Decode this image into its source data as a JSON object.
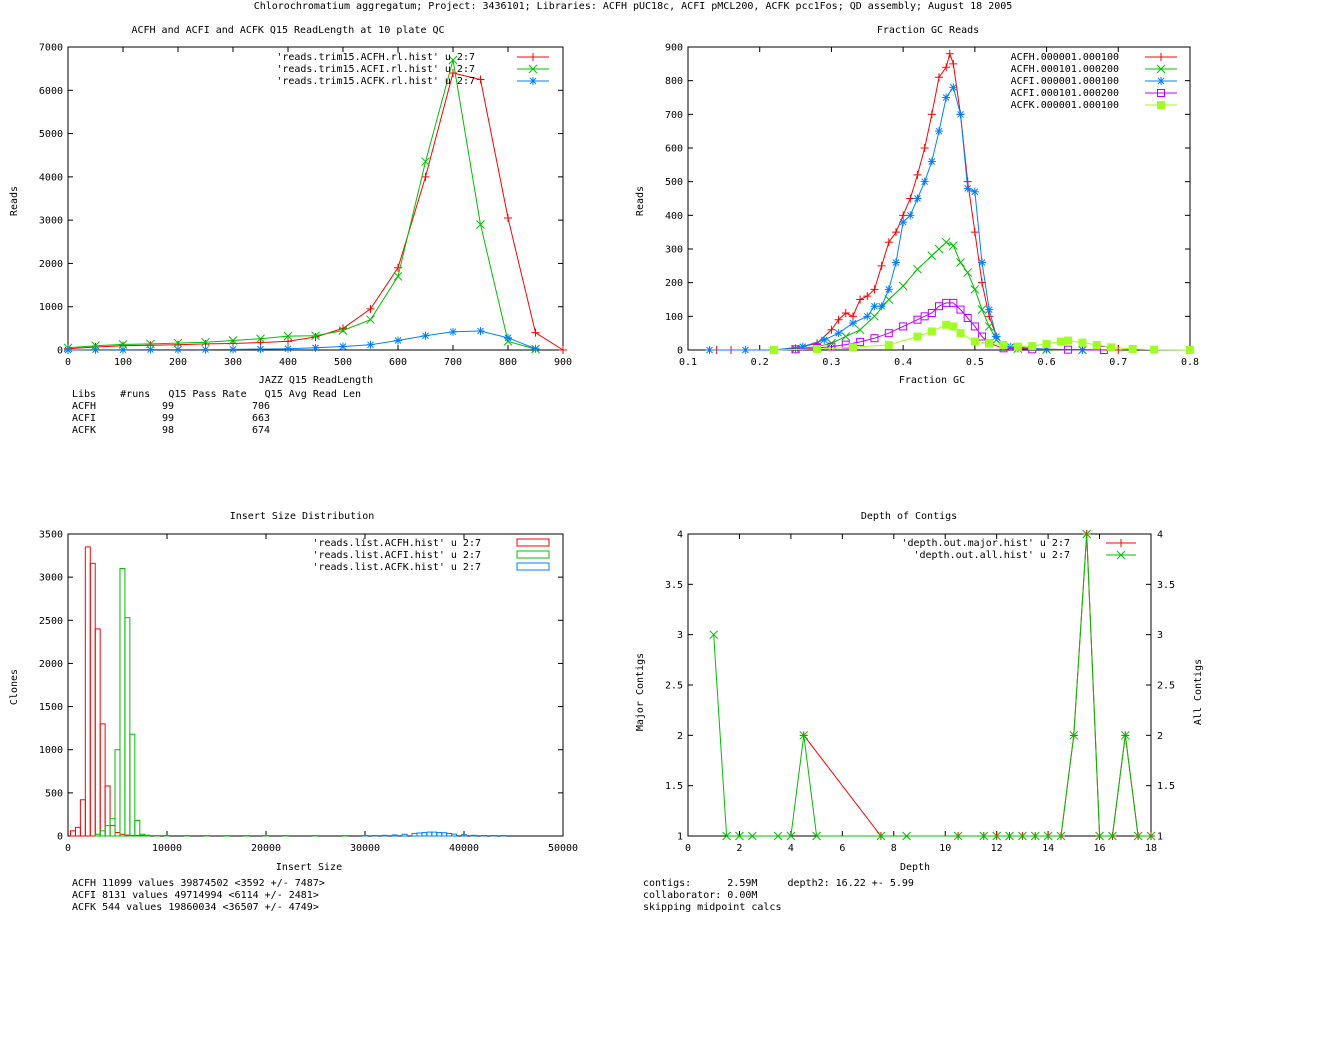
{
  "page_title": "Chlorochromatium aggregatum; Project: 3436101; Libraries: ACFH pUC18c, ACFI pMCL200, ACFK pcc1Fos; QD assembly; August 18 2005",
  "colors": {
    "red": "#ff0000",
    "green": "#00c000",
    "blue": "#0080ff",
    "magenta": "#c000ff",
    "lime": "#a0ff20"
  },
  "chart_data": [
    {
      "id": "readlength",
      "type": "line",
      "title": "ACFH and ACFI and ACFK Q15 ReadLength at 10 plate QC",
      "xlabel": "JAZZ Q15 ReadLength",
      "ylabel": "Reads",
      "xlim": [
        0,
        900
      ],
      "ylim": [
        0,
        7000
      ],
      "xticks": [
        0,
        100,
        200,
        300,
        400,
        500,
        600,
        700,
        800,
        900
      ],
      "yticks": [
        0,
        1000,
        2000,
        3000,
        4000,
        5000,
        6000,
        7000
      ],
      "legend_position": "top-right",
      "series": [
        {
          "name": "'reads.trim15.ACFH.rl.hist' u 2:7",
          "color": "#ff0000",
          "marker": "plus",
          "x": [
            0,
            50,
            100,
            150,
            200,
            250,
            300,
            350,
            400,
            450,
            500,
            550,
            600,
            650,
            700,
            750,
            800,
            850,
            900
          ],
          "y": [
            30,
            70,
            100,
            110,
            120,
            140,
            150,
            170,
            200,
            300,
            500,
            950,
            1900,
            4000,
            6400,
            6250,
            3050,
            400,
            0
          ]
        },
        {
          "name": "'reads.trim15.ACFI.rl.hist' u 2:7",
          "color": "#00c000",
          "marker": "cross",
          "x": [
            0,
            50,
            100,
            150,
            200,
            250,
            300,
            350,
            400,
            450,
            500,
            550,
            600,
            650,
            700,
            750,
            800,
            850
          ],
          "y": [
            50,
            100,
            130,
            140,
            160,
            180,
            220,
            260,
            320,
            330,
            450,
            700,
            1700,
            4350,
            6700,
            2900,
            200,
            20
          ]
        },
        {
          "name": "'reads.trim15.ACFK.rl.hist' u 2:7",
          "color": "#0080ff",
          "marker": "star",
          "x": [
            0,
            50,
            100,
            150,
            200,
            250,
            300,
            350,
            400,
            450,
            500,
            550,
            600,
            650,
            700,
            750,
            800,
            850
          ],
          "y": [
            0,
            5,
            5,
            10,
            10,
            10,
            15,
            20,
            30,
            50,
            80,
            120,
            220,
            330,
            420,
            440,
            280,
            30
          ]
        }
      ],
      "table": {
        "headers": [
          "Libs",
          "#runs",
          "Q15 Pass Rate",
          "Q15 Avg Read Len"
        ],
        "header_line": "Libs    #runs   Q15 Pass Rate   Q15 Avg Read Len",
        "rows": [
          {
            "lib": "ACFH",
            "runs": "99",
            "len": "706"
          },
          {
            "lib": "ACFI",
            "runs": "99",
            "len": "663"
          },
          {
            "lib": "ACFK",
            "runs": "98",
            "len": "674"
          }
        ]
      }
    },
    {
      "id": "gc",
      "type": "line",
      "title": "Fraction GC Reads",
      "xlabel": "Fraction GC",
      "ylabel": "Reads",
      "xlim": [
        0.1,
        0.8
      ],
      "ylim": [
        0,
        900
      ],
      "xticks": [
        0.1,
        0.2,
        0.3,
        0.4,
        0.5,
        0.6,
        0.7,
        0.8
      ],
      "yticks": [
        0,
        100,
        200,
        300,
        400,
        500,
        600,
        700,
        800,
        900
      ],
      "legend_position": "top-right",
      "series": [
        {
          "name": "ACFH.000001.000100",
          "color": "#ff0000",
          "marker": "plus",
          "x": [
            0.14,
            0.16,
            0.22,
            0.25,
            0.28,
            0.3,
            0.31,
            0.32,
            0.33,
            0.34,
            0.35,
            0.36,
            0.37,
            0.38,
            0.39,
            0.4,
            0.41,
            0.42,
            0.43,
            0.44,
            0.45,
            0.46,
            0.465,
            0.47,
            0.48,
            0.49,
            0.5,
            0.51,
            0.52,
            0.53,
            0.54,
            0.56,
            0.6,
            0.65,
            0.7
          ],
          "y": [
            0,
            0,
            0,
            5,
            20,
            60,
            90,
            110,
            100,
            150,
            160,
            180,
            250,
            320,
            350,
            400,
            450,
            520,
            600,
            700,
            810,
            840,
            880,
            850,
            700,
            500,
            350,
            200,
            100,
            40,
            15,
            5,
            2,
            1,
            0
          ]
        },
        {
          "name": "ACFH.000101.000200",
          "color": "#00c000",
          "marker": "cross",
          "x": [
            0.22,
            0.25,
            0.28,
            0.3,
            0.32,
            0.34,
            0.36,
            0.38,
            0.4,
            0.42,
            0.44,
            0.45,
            0.46,
            0.47,
            0.48,
            0.49,
            0.5,
            0.51,
            0.52,
            0.53,
            0.54,
            0.56,
            0.6,
            0.65
          ],
          "y": [
            0,
            3,
            10,
            20,
            40,
            60,
            100,
            150,
            190,
            240,
            280,
            300,
            320,
            310,
            260,
            230,
            180,
            120,
            70,
            30,
            10,
            4,
            1,
            0
          ]
        },
        {
          "name": "ACFI.000001.000100",
          "color": "#0080ff",
          "marker": "star",
          "x": [
            0.13,
            0.18,
            0.22,
            0.26,
            0.29,
            0.31,
            0.33,
            0.35,
            0.36,
            0.37,
            0.38,
            0.39,
            0.4,
            0.41,
            0.42,
            0.43,
            0.44,
            0.45,
            0.46,
            0.47,
            0.48,
            0.49,
            0.5,
            0.51,
            0.52,
            0.53,
            0.54,
            0.55,
            0.6,
            0.65
          ],
          "y": [
            0,
            0,
            0,
            10,
            30,
            50,
            80,
            100,
            130,
            130,
            180,
            260,
            380,
            400,
            450,
            500,
            560,
            650,
            750,
            780,
            700,
            480,
            470,
            260,
            120,
            40,
            15,
            10,
            2,
            0
          ]
        },
        {
          "name": "ACFI.000101.000200",
          "color": "#c000ff",
          "marker": "square",
          "x": [
            0.22,
            0.25,
            0.28,
            0.3,
            0.32,
            0.34,
            0.36,
            0.38,
            0.4,
            0.42,
            0.43,
            0.44,
            0.45,
            0.46,
            0.47,
            0.48,
            0.49,
            0.5,
            0.51,
            0.52,
            0.54,
            0.58,
            0.63,
            0.68
          ],
          "y": [
            0,
            2,
            6,
            10,
            16,
            24,
            35,
            50,
            70,
            90,
            100,
            110,
            130,
            140,
            140,
            120,
            95,
            70,
            40,
            20,
            5,
            2,
            1,
            0
          ]
        },
        {
          "name": "ACFK.000001.000100",
          "color": "#a0ff20",
          "marker": "filled-square",
          "x": [
            0.22,
            0.28,
            0.33,
            0.38,
            0.42,
            0.44,
            0.46,
            0.47,
            0.48,
            0.5,
            0.52,
            0.54,
            0.56,
            0.58,
            0.6,
            0.62,
            0.63,
            0.65,
            0.67,
            0.69,
            0.72,
            0.75,
            0.8
          ],
          "y": [
            0,
            3,
            8,
            15,
            40,
            55,
            75,
            70,
            50,
            25,
            20,
            15,
            10,
            12,
            18,
            25,
            28,
            22,
            15,
            8,
            3,
            1,
            0
          ]
        }
      ]
    },
    {
      "id": "insert",
      "type": "bar",
      "title": "Insert Size Distribution",
      "xlabel": "Insert Size",
      "ylabel": "Clones",
      "xlim": [
        0,
        50000
      ],
      "ylim": [
        0,
        3500
      ],
      "xticks": [
        0,
        10000,
        20000,
        30000,
        40000,
        50000
      ],
      "yticks": [
        0,
        500,
        1000,
        1500,
        2000,
        2500,
        3000,
        3500
      ],
      "bin_width": 500,
      "legend_position": "top-right",
      "series": [
        {
          "name": "'reads.list.ACFH.hist' u 2:7",
          "color": "#ff0000",
          "x": [
            500,
            1000,
            1500,
            2000,
            2500,
            3000,
            3500,
            4000,
            4500,
            5000,
            5500,
            6000,
            6500,
            7000,
            7500,
            8000,
            9000,
            10000
          ],
          "y": [
            60,
            100,
            420,
            3350,
            3160,
            2400,
            1300,
            580,
            120,
            40,
            20,
            10,
            5,
            5,
            3,
            2,
            1,
            1
          ]
        },
        {
          "name": "'reads.list.ACFI.hist' u 2:7",
          "color": "#00c000",
          "x": [
            3000,
            3500,
            4000,
            4500,
            5000,
            5500,
            6000,
            6500,
            7000,
            7500,
            8000,
            9000,
            10000,
            12000,
            14000,
            16000,
            18000,
            20000,
            22000,
            25000,
            28000
          ],
          "y": [
            20,
            60,
            120,
            200,
            1000,
            3100,
            2530,
            1180,
            180,
            20,
            10,
            5,
            5,
            3,
            2,
            2,
            2,
            2,
            1,
            1,
            1
          ]
        },
        {
          "name": "'reads.list.ACFK.hist' u 2:7",
          "color": "#0080ff",
          "x": [
            30000,
            31000,
            32000,
            33000,
            34000,
            35000,
            35500,
            36000,
            36500,
            37000,
            37500,
            38000,
            38500,
            39000,
            40000,
            41000,
            42000,
            43000,
            44000
          ],
          "y": [
            3,
            5,
            8,
            12,
            20,
            30,
            35,
            40,
            45,
            45,
            40,
            38,
            30,
            22,
            15,
            8,
            5,
            3,
            2
          ]
        }
      ],
      "stats": [
        "ACFH 11099 values 39874502 <3592 +/- 7487>",
        "ACFI 8131 values 49714994 <6114 +/- 2481>",
        "ACFK 544 values 19860034 <36507 +/- 4749>"
      ]
    },
    {
      "id": "depth",
      "type": "line",
      "title": "Depth of Contigs",
      "xlabel": "Depth",
      "ylabel": "Major Contigs",
      "y2label": "All Contigs",
      "xlim": [
        0,
        18
      ],
      "ylim": [
        1,
        4
      ],
      "xticks": [
        0,
        2,
        4,
        6,
        8,
        10,
        12,
        14,
        16,
        18
      ],
      "yticks": [
        1,
        1.5,
        2,
        2.5,
        3,
        3.5,
        4
      ],
      "legend_position": "top-right",
      "series": [
        {
          "name": "'depth.out.major.hist' u 2:7",
          "color": "#ff0000",
          "marker": "plus",
          "x": [
            4.5,
            7.5,
            10.5,
            11.5,
            12,
            12.5,
            13,
            13.5,
            14,
            14.5,
            15,
            15.5,
            16,
            16.5,
            17,
            17.5,
            18
          ],
          "y": [
            2,
            1,
            1,
            1,
            1,
            1,
            1,
            1,
            1,
            1,
            2,
            4,
            1,
            1,
            2,
            1,
            1
          ]
        },
        {
          "name": "'depth.out.all.hist' u 2:7",
          "color": "#00c000",
          "marker": "cross",
          "x": [
            1,
            1.5,
            2,
            2.5,
            3.5,
            4,
            4.5,
            5,
            7.5,
            8.5,
            10.5,
            11.5,
            12,
            12.5,
            13,
            13.5,
            14,
            14.5,
            15,
            15.5,
            16,
            16.5,
            17,
            17.5,
            18
          ],
          "y": [
            3,
            1,
            1,
            1,
            1,
            1,
            2,
            1,
            1,
            1,
            1,
            1,
            1,
            1,
            1,
            1,
            1,
            1,
            2,
            4,
            1,
            1,
            2,
            1,
            1
          ]
        }
      ],
      "stats": [
        "contigs:      2.59M     depth2: 16.22 +- 5.99",
        "collaborator: 0.00M",
        "skipping midpoint calcs"
      ]
    }
  ]
}
